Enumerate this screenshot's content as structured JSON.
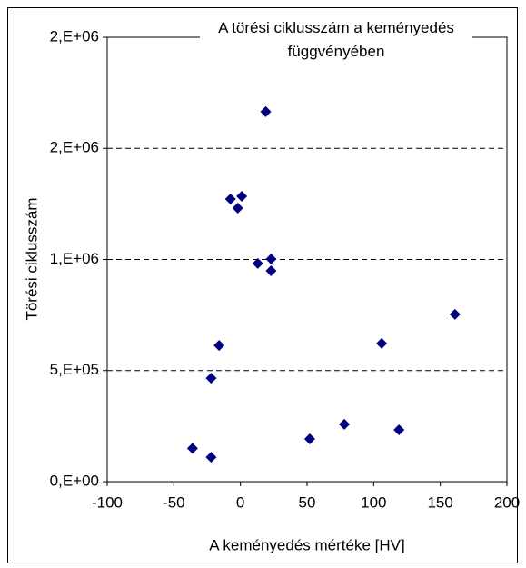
{
  "chart_data": {
    "type": "scatter",
    "title": "A törési ciklusszám a keményedés függvényében",
    "x_label": "A keményedés mértéke [HV]",
    "y_label": "Törési ciklusszám",
    "xlim": [
      -100,
      200
    ],
    "xticks": [
      -100,
      -50,
      0,
      50,
      100,
      150,
      200
    ],
    "ylim": [
      0,
      2000000
    ],
    "yticks": [
      {
        "value": 0,
        "label": "0,E+00"
      },
      {
        "value": 500000,
        "label": "5,E+05"
      },
      {
        "value": 1000000,
        "label": "1,E+06"
      },
      {
        "value": 1500000,
        "label": "2,E+06"
      },
      {
        "value": 2000000,
        "label": "2,E+06"
      }
    ],
    "grid": true,
    "series": [
      {
        "color": "#000080",
        "x": [
          -36,
          -22,
          -22,
          -16,
          -7.5,
          -2,
          1,
          13,
          19,
          23,
          23,
          52,
          78,
          106,
          119,
          161
        ],
        "values": [
          150000,
          110000,
          466000,
          613000,
          1272000,
          1231000,
          1284000,
          982000,
          1665000,
          1002000,
          949000,
          192000,
          258000,
          622000,
          233000,
          753000
        ]
      }
    ]
  }
}
